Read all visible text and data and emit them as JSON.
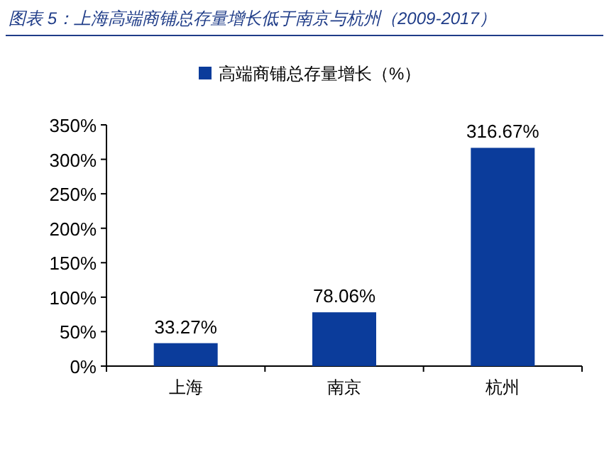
{
  "chart_data": {
    "type": "bar",
    "title": "图表 5：上海高端商铺总存量增长低于南京与杭州（2009-2017）",
    "categories": [
      "上海",
      "南京",
      "杭州"
    ],
    "series": [
      {
        "name": "高端商铺总存量增长（%）",
        "color": "#0b3c9b",
        "values": [
          33.27,
          78.06,
          316.67
        ],
        "value_labels": [
          "33.27%",
          "78.06%",
          "316.67%"
        ]
      }
    ],
    "ylim": [
      0,
      350
    ],
    "yticks": [
      {
        "value": 0,
        "label": "0%"
      },
      {
        "value": 50,
        "label": "50%"
      },
      {
        "value": 100,
        "label": "100%"
      },
      {
        "value": 150,
        "label": "150%"
      },
      {
        "value": 200,
        "label": "200%"
      },
      {
        "value": 250,
        "label": "250%"
      },
      {
        "value": 300,
        "label": "300%"
      },
      {
        "value": 350,
        "label": "350%"
      }
    ],
    "grid": false,
    "legend": "top"
  }
}
